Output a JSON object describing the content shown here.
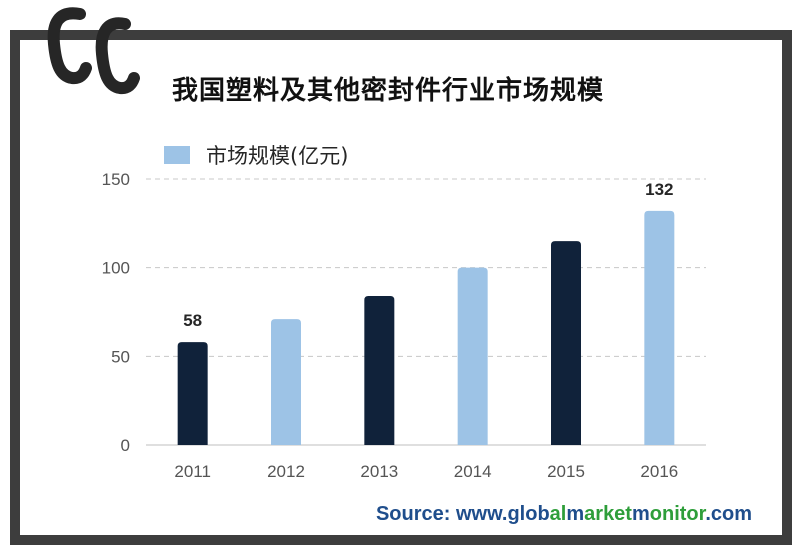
{
  "chart_data": {
    "type": "bar",
    "title": "我国塑料及其他密封件行业市场规模",
    "categories": [
      "2011",
      "2012",
      "2013",
      "2014",
      "2015",
      "2016"
    ],
    "series": [
      {
        "name": "市场规模(亿元)",
        "values": [
          58,
          71,
          84,
          100,
          115,
          132
        ]
      }
    ],
    "data_labels": {
      "2011": "58",
      "2016": "132"
    },
    "bar_colors": [
      "#10223a",
      "#9dc3e6",
      "#10223a",
      "#9dc3e6",
      "#10223a",
      "#9dc3e6"
    ],
    "legend_color": "#9dc3e6",
    "ylim": [
      0,
      150
    ],
    "yticks": [
      0,
      50,
      100,
      150
    ],
    "xlabel": "",
    "ylabel": "",
    "grid": "horizontal dashed",
    "legend_position": "top-left"
  },
  "source": {
    "prefix": "Source: www.",
    "parts": [
      {
        "text": "glob",
        "highlight": false
      },
      {
        "text": "al",
        "highlight": true
      },
      {
        "text": "m",
        "highlight": false
      },
      {
        "text": "arket",
        "highlight": true
      },
      {
        "text": "m",
        "highlight": false
      },
      {
        "text": "onitor",
        "highlight": true
      },
      {
        "text": ".com",
        "highlight": false
      }
    ]
  },
  "colors": {
    "frame": "#3d3d3d",
    "dark_bar": "#10223a",
    "light_bar": "#9dc3e6",
    "source_blue": "#1f4e8c",
    "source_green": "#2e9e3a"
  },
  "logo_icon": "gmm-logo-icon"
}
